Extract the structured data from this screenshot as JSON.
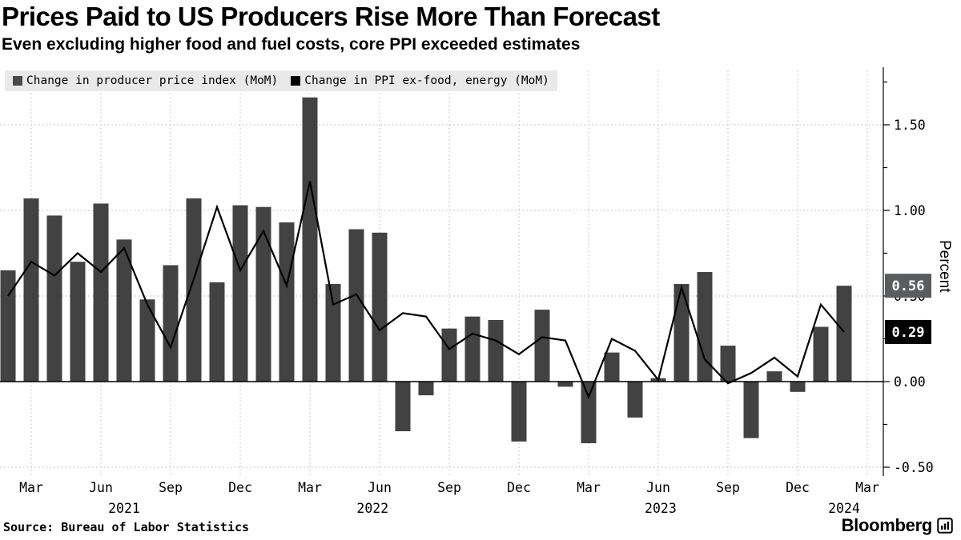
{
  "header": {
    "title": "Prices Paid to US Producers Rise More Than Forecast",
    "subtitle": "Even excluding higher food and fuel costs, core PPI exceeded estimates"
  },
  "legend": [
    {
      "label": "Change in producer price index (MoM)",
      "color": "#4a4a4a"
    },
    {
      "label": "Change in PPI ex-food, energy (MoM)",
      "color": "#000000"
    }
  ],
  "chart_data": {
    "type": "bar",
    "title": "Prices Paid to US Producers Rise More Than Forecast",
    "subtitle": "Even excluding higher food and fuel costs, core PPI exceeded estimates",
    "xlabel": "",
    "ylabel": "Percent",
    "ylim": [
      -0.55,
      1.82
    ],
    "grid": "dotted",
    "legend_position": "top-left",
    "x": [
      "Feb 2021",
      "Mar 2021",
      "Apr 2021",
      "May 2021",
      "Jun 2021",
      "Jul 2021",
      "Aug 2021",
      "Sep 2021",
      "Oct 2021",
      "Nov 2021",
      "Dec 2021",
      "Jan 2022",
      "Feb 2022",
      "Mar 2022",
      "Apr 2022",
      "May 2022",
      "Jun 2022",
      "Jul 2022",
      "Aug 2022",
      "Sep 2022",
      "Oct 2022",
      "Nov 2022",
      "Dec 2022",
      "Jan 2023",
      "Feb 2023",
      "Mar 2023",
      "Apr 2023",
      "May 2023",
      "Jun 2023",
      "Jul 2023",
      "Aug 2023",
      "Sep 2023",
      "Oct 2023",
      "Nov 2023",
      "Dec 2023",
      "Jan 2024",
      "Feb 2024",
      "Mar 2024"
    ],
    "series": [
      {
        "name": "Change in producer price index (MoM)",
        "type": "bar",
        "color": "#424242",
        "values": [
          0.65,
          1.07,
          0.97,
          0.7,
          1.04,
          0.83,
          0.48,
          0.68,
          1.07,
          0.58,
          1.03,
          1.02,
          0.93,
          1.66,
          0.57,
          0.89,
          0.87,
          -0.29,
          -0.08,
          0.31,
          0.38,
          0.36,
          -0.35,
          0.42,
          -0.03,
          -0.36,
          0.17,
          -0.21,
          0.02,
          0.57,
          0.64,
          0.21,
          -0.33,
          0.06,
          -0.06,
          0.32,
          0.56,
          null
        ]
      },
      {
        "name": "Change in PPI ex-food, energy (MoM)",
        "type": "line",
        "color": "#000000",
        "values": [
          0.5,
          0.7,
          0.62,
          0.75,
          0.64,
          0.78,
          0.45,
          0.2,
          0.6,
          1.02,
          0.65,
          0.88,
          0.56,
          1.17,
          0.45,
          0.51,
          0.3,
          0.4,
          0.38,
          0.19,
          0.28,
          0.24,
          0.16,
          0.26,
          0.24,
          -0.09,
          0.25,
          0.18,
          0.01,
          0.55,
          0.13,
          -0.01,
          0.05,
          0.14,
          0.03,
          0.45,
          0.29,
          null
        ]
      }
    ],
    "yticks": [
      1.5,
      1.0,
      0.5,
      0.0,
      -0.5
    ],
    "ytick_labels": [
      "1.50",
      "1.00",
      "0.50",
      "0.00",
      "-0.50"
    ],
    "xticks": [
      {
        "index": 1,
        "label": "Mar"
      },
      {
        "index": 4,
        "label": "Jun"
      },
      {
        "index": 7,
        "label": "Sep"
      },
      {
        "index": 10,
        "label": "Dec"
      },
      {
        "index": 13,
        "label": "Mar"
      },
      {
        "index": 16,
        "label": "Jun"
      },
      {
        "index": 19,
        "label": "Sep"
      },
      {
        "index": 22,
        "label": "Dec"
      },
      {
        "index": 25,
        "label": "Mar"
      },
      {
        "index": 28,
        "label": "Jun"
      },
      {
        "index": 31,
        "label": "Sep"
      },
      {
        "index": 34,
        "label": "Dec"
      },
      {
        "index": 37,
        "label": "Mar"
      }
    ],
    "year_labels": [
      {
        "label": "2021",
        "center_index": 5
      },
      {
        "label": "2022",
        "center_index": 15.7
      },
      {
        "label": "2023",
        "center_index": 28.1
      },
      {
        "label": "2024",
        "center_index": 36
      }
    ],
    "callouts": [
      {
        "label": "0.56",
        "value": 0.56,
        "bg": "#5a5c5e",
        "fg": "#ffffff",
        "series": "Change in producer price index (MoM)"
      },
      {
        "label": "0.29",
        "value": 0.29,
        "bg": "#000000",
        "fg": "#ffffff",
        "series": "Change in PPI ex-food, energy (MoM)"
      }
    ]
  },
  "footer": {
    "source": "Source: Bureau of Labor Statistics",
    "brand": "Bloomberg"
  }
}
